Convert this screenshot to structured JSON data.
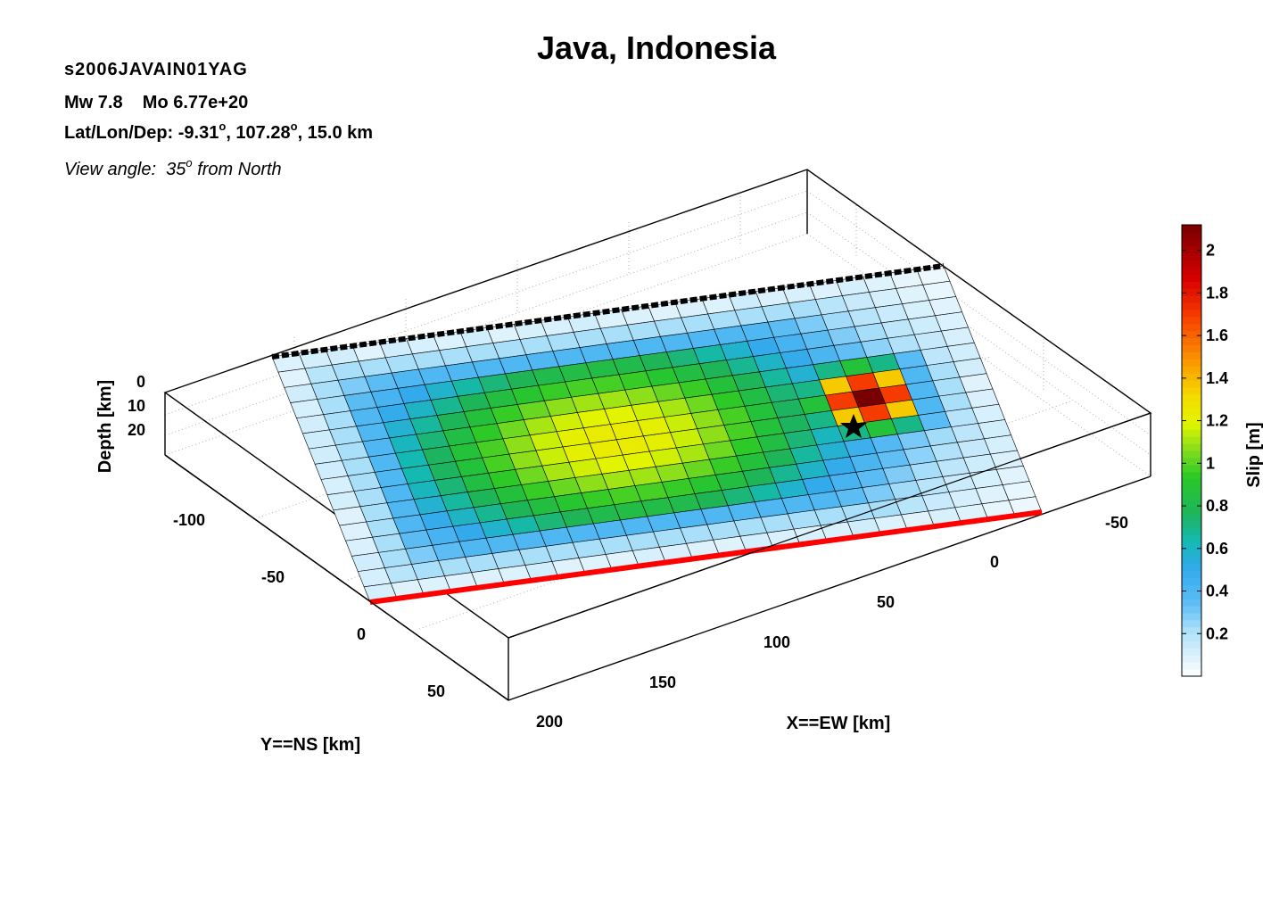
{
  "header": {
    "title": "Java, Indonesia",
    "event_id": "s2006JAVAIN01YAG",
    "magnitude_text": "Mw 7.8    Mo 6.77e+20",
    "location_prefix": "Lat/Lon/Dep: -9.31",
    "location_mid": ", 107.28",
    "location_suffix": ", 15.0 km",
    "degree_symbol": "o",
    "view_prefix": "View angle:  35",
    "view_suffix": " from North"
  },
  "colors": {
    "shallow_edge": "#ff0000",
    "top_edge": "#000000",
    "epicenter": "#000000"
  },
  "chart_data": {
    "type": "heatmap",
    "title": "Java, Indonesia",
    "xlabel": "X==EW [km]",
    "ylabel": "Y==NS [km]",
    "zlabel": "Depth [km]",
    "colorbar_label": "Slip [m]",
    "x_ticks": [
      "-50",
      "0",
      "50",
      "100",
      "150",
      "200"
    ],
    "y_ticks": [
      "-100",
      "-50",
      "0",
      "50"
    ],
    "z_ticks": [
      "0",
      "10",
      "20"
    ],
    "colorbar_ticks": [
      "2",
      "1.8",
      "1.6",
      "1.4",
      "1.2",
      "1",
      "0.8",
      "0.6",
      "0.4",
      "0.2"
    ],
    "clim": [
      0,
      2.12
    ],
    "grid": true,
    "view_azimuth_deg": 35,
    "fault_strike_cells": 25,
    "fault_dip_cells": 16,
    "hypocenter_cell": [
      20,
      7
    ],
    "slip_model": {
      "peak1": {
        "strike_cell": 10.5,
        "dip_cell": 7.5,
        "value": 1.25,
        "sigma_strike": 6.5,
        "sigma_dip": 5
      },
      "peak2": {
        "strike_cell": 20,
        "dip_cell": 7,
        "value": 2.12,
        "sigma_strike": 1.5,
        "sigma_dip": 1.5
      },
      "edge_taper": 0.15
    }
  }
}
